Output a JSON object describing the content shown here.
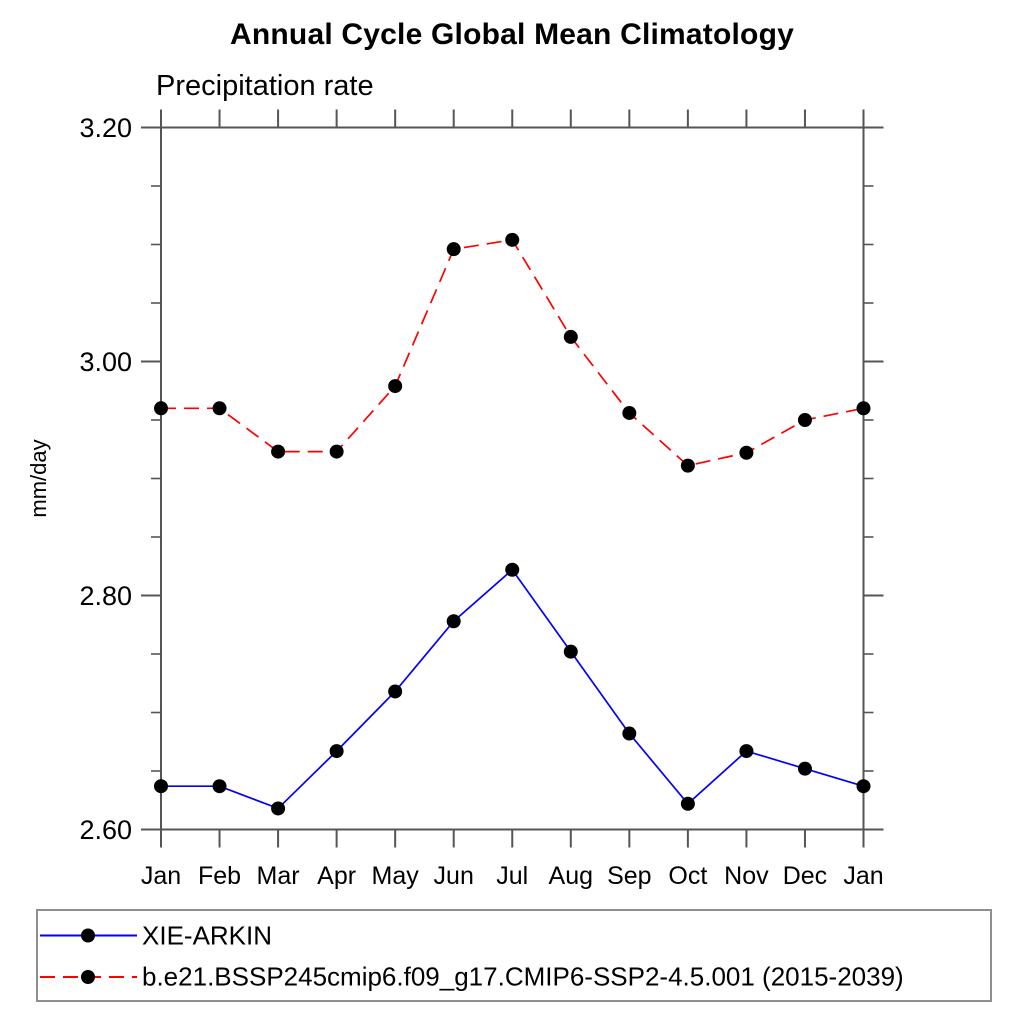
{
  "page": {
    "background": "#ffffff"
  },
  "chart_data": {
    "type": "line",
    "title": "Annual Cycle Global Mean Climatology",
    "subtitle": "Precipitation rate",
    "xlabel": "",
    "ylabel": "mm/day",
    "categories": [
      "Jan",
      "Feb",
      "Mar",
      "Apr",
      "May",
      "Jun",
      "Jul",
      "Aug",
      "Sep",
      "Oct",
      "Nov",
      "Dec",
      "Jan"
    ],
    "ylim": [
      2.6,
      3.2
    ],
    "ytick_values": [
      3.2,
      3.0,
      2.8,
      2.6
    ],
    "ytick_labels": [
      "3.20",
      "3.00",
      "2.80",
      "2.60"
    ],
    "ytick_minor_step": 0.05,
    "grid": false,
    "legend_position": "bottom-left-box",
    "axis_color": "#555555",
    "series": [
      {
        "name": "XIE-ARKIN",
        "color": "#0000ff",
        "style": "solid",
        "marker": "filled-circle",
        "marker_color": "#000000",
        "values": [
          2.637,
          2.637,
          2.618,
          2.667,
          2.718,
          2.778,
          2.822,
          2.752,
          2.682,
          2.622,
          2.667,
          2.652,
          2.637
        ]
      },
      {
        "name": "b.e21.BSSP245cmip6.f09_g17.CMIP6-SSP2-4.5.001 (2015-2039)",
        "color": "#ff0000",
        "style": "dashed",
        "marker": "filled-circle",
        "marker_color": "#000000",
        "values": [
          2.96,
          2.96,
          2.923,
          2.923,
          2.979,
          3.096,
          3.104,
          3.021,
          2.956,
          2.911,
          2.922,
          2.95,
          2.96
        ]
      }
    ]
  }
}
